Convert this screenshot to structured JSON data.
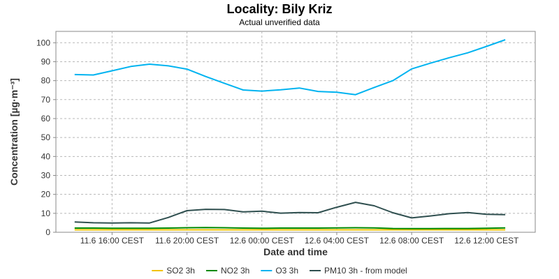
{
  "chart_data": {
    "type": "line",
    "title": "Locality: Bily Kriz",
    "subtitle": "Actual unverified data",
    "xlabel": "Date and time",
    "ylabel": "Concentration [µg·m⁻³]",
    "ylim": [
      0,
      106
    ],
    "yticks": [
      0,
      10,
      20,
      30,
      40,
      50,
      60,
      70,
      80,
      90,
      100
    ],
    "grid": true,
    "legend_position": "bottom",
    "x_hours": [
      14,
      15,
      16,
      17,
      18,
      19,
      20,
      21,
      22,
      23,
      24,
      25,
      26,
      27,
      28,
      29,
      30,
      31,
      32,
      33,
      34,
      35,
      36,
      37
    ],
    "x_range": [
      13.0,
      38.6
    ],
    "xticks": [
      {
        "hour": 16,
        "label": "11.6 16:00 CEST"
      },
      {
        "hour": 20,
        "label": "11.6 20:00 CEST"
      },
      {
        "hour": 24,
        "label": "12.6 00:00 CEST"
      },
      {
        "hour": 28,
        "label": "12.6 04:00 CEST"
      },
      {
        "hour": 32,
        "label": "12.6 08:00 CEST"
      },
      {
        "hour": 36,
        "label": "12.6 12:00 CEST"
      }
    ],
    "series": [
      {
        "name": "SO2 3h",
        "color": "#f2c200",
        "values": [
          1.3,
          1.3,
          1.3,
          1.3,
          1.3,
          1.3,
          1.3,
          1.3,
          1.3,
          1.3,
          1.3,
          1.3,
          1.3,
          1.3,
          1.3,
          1.3,
          1.3,
          1.3,
          1.3,
          1.3,
          1.3,
          1.3,
          1.3,
          1.3
        ]
      },
      {
        "name": "NO2 3h",
        "color": "#008a00",
        "values": [
          2.2,
          2.2,
          2.1,
          2.1,
          2.1,
          2.2,
          2.4,
          2.5,
          2.4,
          2.2,
          2.1,
          2.2,
          2.2,
          2.2,
          2.3,
          2.4,
          2.3,
          2.0,
          1.9,
          1.9,
          2.0,
          2.0,
          2.1,
          2.3
        ]
      },
      {
        "name": "O3 3h",
        "color": "#00b3f0",
        "values": [
          83.2,
          83.0,
          85.2,
          87.5,
          88.7,
          87.8,
          86.1,
          82.2,
          78.6,
          75.1,
          74.5,
          75.2,
          76.1,
          74.3,
          73.9,
          72.6,
          76.4,
          80.0,
          86.2,
          89.2,
          92.1,
          94.7,
          98.1,
          101.6
        ]
      },
      {
        "name": "PM10 3h - from model",
        "color": "#2f4f4f",
        "values": [
          5.4,
          5.0,
          4.9,
          5.0,
          4.9,
          7.8,
          11.4,
          12.1,
          12.0,
          10.8,
          11.1,
          10.1,
          10.4,
          10.3,
          13.2,
          15.8,
          14.0,
          10.3,
          7.6,
          8.6,
          9.8,
          10.4,
          9.5,
          9.3
        ]
      }
    ]
  }
}
